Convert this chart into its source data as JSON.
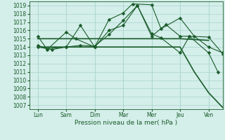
{
  "xlabel": "Pression niveau de la mer( hPa )",
  "x_labels": [
    "Lun",
    "Sam",
    "Dim",
    "Mar",
    "Mer",
    "Jeu",
    "Ven"
  ],
  "ylim": [
    1006.5,
    1019.5
  ],
  "yticks": [
    1007,
    1008,
    1009,
    1010,
    1011,
    1012,
    1013,
    1014,
    1015,
    1016,
    1017,
    1018,
    1019
  ],
  "background_color": "#d4eeea",
  "grid_color": "#aad4cc",
  "line_color": "#1a5c2a",
  "series": [
    {
      "x": [
        0,
        0.33,
        1,
        1.33,
        2,
        2.5,
        3,
        3.33,
        4,
        4.33,
        5,
        5.5,
        6,
        6.5
      ],
      "y": [
        1015.3,
        1013.7,
        1015.8,
        1015.0,
        1014.0,
        1017.3,
        1018.1,
        1019.2,
        1019.1,
        1016.2,
        1017.5,
        1015.3,
        1014.0,
        1013.3
      ],
      "marker": "D",
      "lw": 0.8
    },
    {
      "x": [
        0,
        0.33,
        1,
        1.5,
        2,
        2.5,
        3,
        3.5,
        4,
        4.5,
        5,
        5.33,
        6,
        6.5
      ],
      "y": [
        1014.2,
        1013.8,
        1014.0,
        1016.6,
        1014.0,
        1016.0,
        1016.6,
        1019.0,
        1015.3,
        1016.7,
        1015.3,
        1015.3,
        1015.2,
        1013.2
      ],
      "marker": "D",
      "lw": 0.8
    },
    {
      "x": [
        0,
        0.5,
        1,
        1.5,
        2,
        2.5,
        3,
        3.5,
        4,
        4.33,
        5,
        5.33,
        6,
        6.33
      ],
      "y": [
        1014.0,
        1013.7,
        1014.0,
        1014.2,
        1014.1,
        1015.5,
        1017.2,
        1019.0,
        1015.6,
        1015.1,
        1013.3,
        1015.3,
        1013.3,
        1011.0
      ],
      "marker": "D",
      "lw": 0.8
    },
    {
      "x": [
        0,
        1,
        2,
        3,
        4,
        5,
        6
      ],
      "y": [
        1015.0,
        1015.0,
        1015.0,
        1015.0,
        1015.0,
        1015.0,
        1014.8
      ],
      "marker": null,
      "lw": 1.2
    },
    {
      "x": [
        0,
        1,
        2,
        3,
        4,
        5,
        5.5,
        6,
        6.5
      ],
      "y": [
        1014.0,
        1014.0,
        1014.0,
        1014.0,
        1014.0,
        1014.0,
        1011.0,
        1008.5,
        1006.7
      ],
      "marker": null,
      "lw": 1.2
    }
  ],
  "marker_size": 2.5
}
